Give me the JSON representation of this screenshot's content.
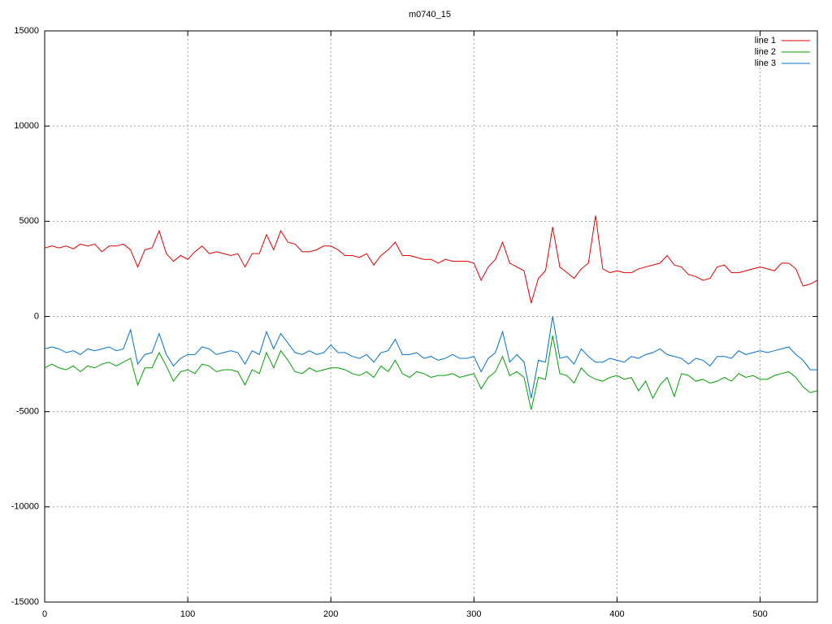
{
  "chart_data": {
    "type": "line",
    "title": "m0740_15",
    "x": [
      0,
      5,
      10,
      15,
      20,
      25,
      30,
      35,
      40,
      45,
      50,
      55,
      60,
      65,
      70,
      75,
      80,
      85,
      90,
      95,
      100,
      105,
      110,
      115,
      120,
      125,
      130,
      135,
      140,
      145,
      150,
      155,
      160,
      165,
      170,
      175,
      180,
      185,
      190,
      195,
      200,
      205,
      210,
      215,
      220,
      225,
      230,
      235,
      240,
      245,
      250,
      255,
      260,
      265,
      270,
      275,
      280,
      285,
      290,
      295,
      300,
      305,
      310,
      315,
      320,
      325,
      330,
      335,
      340,
      345,
      350,
      355,
      360,
      365,
      370,
      375,
      380,
      385,
      390,
      395,
      400,
      405,
      410,
      415,
      420,
      425,
      430,
      435,
      440,
      445,
      450,
      455,
      460,
      465,
      470,
      475,
      480,
      485,
      490,
      495,
      500,
      505,
      510,
      515,
      520,
      525,
      530,
      535,
      540
    ],
    "series": [
      {
        "name": "line 1",
        "color": "#e00000",
        "values": [
          3600,
          3700,
          3600,
          3700,
          3550,
          3800,
          3700,
          3800,
          3400,
          3700,
          3700,
          3800,
          3500,
          2600,
          3500,
          3600,
          4500,
          3300,
          2900,
          3200,
          3000,
          3400,
          3700,
          3300,
          3400,
          3300,
          3200,
          3300,
          2600,
          3300,
          3300,
          4300,
          3500,
          4500,
          3900,
          3800,
          3400,
          3400,
          3500,
          3700,
          3700,
          3500,
          3200,
          3200,
          3100,
          3300,
          2700,
          3200,
          3500,
          3900,
          3200,
          3200,
          3100,
          3000,
          3000,
          2800,
          3000,
          2900,
          2900,
          2900,
          2800,
          1900,
          2600,
          3000,
          3900,
          2800,
          2600,
          2400,
          700,
          2000,
          2400,
          4700,
          2600,
          2300,
          2000,
          2500,
          2800,
          5300,
          2500,
          2300,
          2400,
          2300,
          2300,
          2500,
          2600,
          2700,
          2800,
          3200,
          2700,
          2600,
          2200,
          2100,
          1900,
          2000,
          2600,
          2700,
          2300,
          2300,
          2400,
          2500,
          2600,
          2500,
          2400,
          2800,
          2800,
          2500,
          1600,
          1700,
          1900
        ]
      },
      {
        "name": "line 2",
        "color": "#00a000",
        "values": [
          -2700,
          -2500,
          -2700,
          -2800,
          -2600,
          -2900,
          -2600,
          -2700,
          -2500,
          -2400,
          -2600,
          -2400,
          -2200,
          -3600,
          -2700,
          -2700,
          -1900,
          -2600,
          -3400,
          -2900,
          -2800,
          -3000,
          -2500,
          -2600,
          -2900,
          -2800,
          -2800,
          -2900,
          -3600,
          -2800,
          -3000,
          -1900,
          -2700,
          -1800,
          -2300,
          -2900,
          -3000,
          -2700,
          -2900,
          -2800,
          -2700,
          -2700,
          -2800,
          -3000,
          -3100,
          -2900,
          -3200,
          -2600,
          -2900,
          -2300,
          -3000,
          -3200,
          -2900,
          -3000,
          -3200,
          -3100,
          -3100,
          -3000,
          -3200,
          -3100,
          -3000,
          -3800,
          -3200,
          -2900,
          -2100,
          -3100,
          -2900,
          -3200,
          -4900,
          -3200,
          -3300,
          -1000,
          -3000,
          -3100,
          -3500,
          -2700,
          -3100,
          -3300,
          -3400,
          -3200,
          -3100,
          -3300,
          -3200,
          -3900,
          -3400,
          -4300,
          -3600,
          -3200,
          -4200,
          -3000,
          -3100,
          -3400,
          -3300,
          -3500,
          -3400,
          -3200,
          -3400,
          -3000,
          -3200,
          -3100,
          -3300,
          -3300,
          -3100,
          -3000,
          -2900,
          -3200,
          -3700,
          -4000,
          -3900
        ]
      },
      {
        "name": "line 3",
        "color": "#0070d0",
        "values": [
          -1700,
          -1600,
          -1700,
          -1900,
          -1800,
          -2000,
          -1700,
          -1800,
          -1700,
          -1600,
          -1800,
          -1700,
          -700,
          -2500,
          -2000,
          -1900,
          -900,
          -2000,
          -2600,
          -2200,
          -2000,
          -2000,
          -1600,
          -1700,
          -2000,
          -1900,
          -1800,
          -1900,
          -2500,
          -1800,
          -2000,
          -800,
          -1700,
          -900,
          -1400,
          -1900,
          -2000,
          -1800,
          -2000,
          -1900,
          -1500,
          -1900,
          -1900,
          -2100,
          -2200,
          -2000,
          -2400,
          -1900,
          -1800,
          -1200,
          -2000,
          -2000,
          -1900,
          -2200,
          -2100,
          -2300,
          -2200,
          -2000,
          -2200,
          -2200,
          -2100,
          -2900,
          -2200,
          -1900,
          -800,
          -2400,
          -2000,
          -2400,
          -4300,
          -2300,
          -2400,
          0,
          -2200,
          -2100,
          -2500,
          -1700,
          -2100,
          -2400,
          -2400,
          -2200,
          -2300,
          -2400,
          -2100,
          -2200,
          -2000,
          -1900,
          -1700,
          -2000,
          -2100,
          -2200,
          -2500,
          -2200,
          -2300,
          -2600,
          -2100,
          -2100,
          -2200,
          -1800,
          -2000,
          -1900,
          -1800,
          -1900,
          -1800,
          -1700,
          -1600,
          -2000,
          -2300,
          -2800,
          -2800
        ]
      }
    ],
    "xlim": [
      0,
      540
    ],
    "ylim": [
      -15000,
      15000
    ],
    "xticks": [
      0,
      100,
      200,
      300,
      400,
      500
    ],
    "yticks": [
      -15000,
      -10000,
      -5000,
      0,
      5000,
      10000,
      15000
    ],
    "grid": true,
    "legend": "top-right"
  }
}
